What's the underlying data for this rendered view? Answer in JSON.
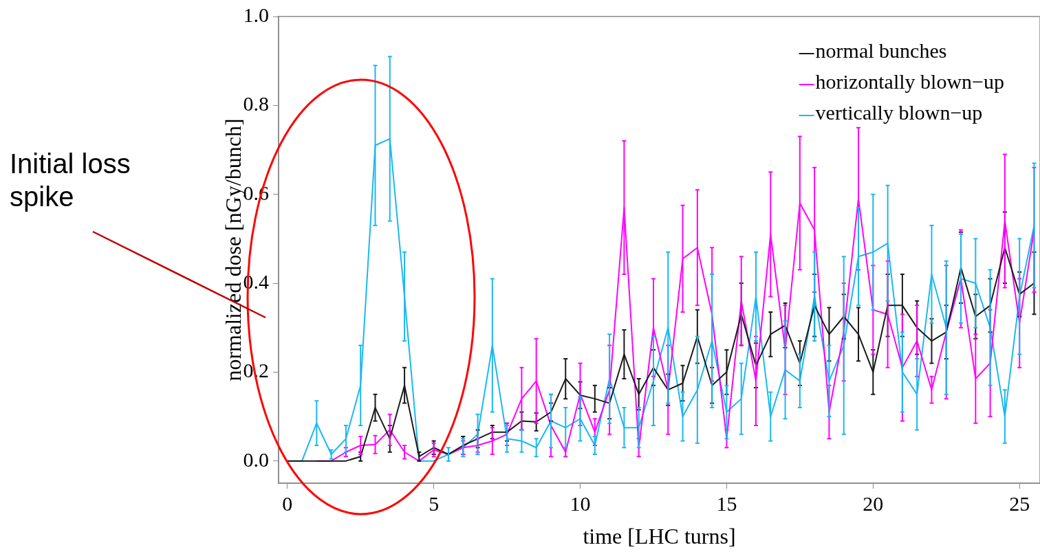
{
  "chart_data": {
    "type": "line",
    "xlabel": "time [LHC turns]",
    "ylabel": "normalized dose [nGy/bunch]",
    "annotations": [
      "Initial loss spike"
    ],
    "x": [
      0,
      0.5,
      1,
      1.5,
      2,
      2.5,
      3,
      3.5,
      4,
      4.5,
      5,
      5.5,
      6,
      6.5,
      7,
      7.5,
      8,
      8.5,
      9,
      9.5,
      10,
      10.5,
      11,
      11.5,
      12,
      12.5,
      13,
      13.5,
      14,
      14.5,
      15,
      15.5,
      16,
      16.5,
      17,
      17.5,
      18,
      18.5,
      19,
      19.5,
      20,
      20.5,
      21,
      21.5,
      22,
      22.5,
      23,
      23.5,
      24,
      24.5,
      25,
      25.5
    ],
    "xlim": [
      -0.3,
      25.7
    ],
    "xticks": [
      0,
      5,
      10,
      15,
      20,
      25
    ],
    "ylim": [
      -0.05,
      1.0
    ],
    "yticks": [
      {
        "value": 0,
        "label": "0.0"
      },
      {
        "value": 0.2,
        "label": "0.2"
      },
      {
        "value": 0.4,
        "label": "0.4"
      },
      {
        "value": 0.6,
        "label": "0.6"
      },
      {
        "value": 0.8,
        "label": "0.8"
      },
      {
        "value": 1.0,
        "label": "1.0"
      }
    ],
    "legend": "top right",
    "series": [
      {
        "name": "normal bunches",
        "color": "#1a1a1a",
        "values": [
          0,
          0,
          0,
          0,
          0,
          0.01,
          0.12,
          0.05,
          0.17,
          0.01,
          0.03,
          0.015,
          0.035,
          0.05,
          0.065,
          0.065,
          0.09,
          0.088,
          0.11,
          0.185,
          0.148,
          0.14,
          0.13,
          0.24,
          0.15,
          0.21,
          0.16,
          0.175,
          0.28,
          0.17,
          0.2,
          0.33,
          0.215,
          0.285,
          0.305,
          0.22,
          0.35,
          0.285,
          0.325,
          0.285,
          0.2,
          0.35,
          0.35,
          0.3,
          0.27,
          0.29,
          0.435,
          0.325,
          0.35,
          0.48,
          0.375,
          0.4
        ],
        "errors": [
          null,
          null,
          null,
          null,
          null,
          0.01,
          0.03,
          0.03,
          0.04,
          0.01,
          0.015,
          null,
          0.02,
          0.02,
          0.015,
          0.02,
          0.02,
          0.02,
          0.02,
          0.045,
          0.03,
          0.03,
          0.035,
          0.055,
          0.035,
          0.04,
          0.035,
          0.04,
          0.06,
          0.04,
          0.05,
          0.07,
          0.05,
          0.05,
          0.05,
          0.05,
          0.07,
          0.06,
          0.05,
          0.06,
          0.05,
          0.07,
          0.07,
          0.06,
          0.05,
          0.06,
          0.08,
          0.05,
          0.06,
          0.08,
          0.05,
          0.07
        ]
      },
      {
        "name": "horizontally blown−up",
        "color": "#ff00ff",
        "values": [
          null,
          null,
          0,
          0,
          0.02,
          0.035,
          0.037,
          0.07,
          0.02,
          0,
          0.025,
          0.015,
          0.03,
          0.035,
          0.045,
          0.06,
          0.14,
          0.18,
          0.08,
          0.02,
          0.15,
          0.065,
          0.16,
          0.57,
          0.03,
          0.3,
          0.16,
          0.455,
          0.48,
          0.33,
          0.05,
          0.36,
          0.18,
          0.51,
          0.25,
          0.58,
          0.52,
          0.11,
          0.29,
          0.59,
          0.34,
          0.33,
          0.21,
          0.27,
          0.16,
          0.29,
          0.41,
          0.185,
          0.22,
          0.54,
          0.31,
          0.52
        ],
        "errors": [
          null,
          null,
          null,
          null,
          0.01,
          0.02,
          0.02,
          0.035,
          0.015,
          null,
          0.015,
          null,
          0.015,
          0.015,
          0.03,
          0.025,
          0.07,
          0.095,
          0.07,
          0.01,
          0.07,
          0.03,
          0.1,
          0.15,
          0.02,
          0.11,
          0.1,
          0.12,
          0.13,
          0.15,
          0.02,
          0.1,
          0.1,
          0.14,
          0.1,
          0.15,
          0.14,
          0.06,
          0.11,
          0.16,
          0.1,
          0.12,
          0.12,
          0.08,
          0.03,
          0.15,
          0.11,
          0.1,
          0.12,
          0.15,
          0.1,
          0.14
        ]
      },
      {
        "name": "vertically blown−up",
        "color": "#1ab8f0",
        "values": [
          0,
          0,
          0.085,
          0.015,
          0.05,
          0.17,
          0.71,
          0.725,
          0.37,
          0,
          0,
          0.015,
          0.03,
          0.06,
          0.26,
          0.05,
          0.045,
          0.03,
          0.09,
          0.075,
          0.095,
          0.035,
          0.185,
          0.075,
          0.075,
          0.18,
          0.3,
          0.1,
          0.16,
          0.27,
          0.11,
          0.14,
          0.37,
          0.1,
          0.205,
          0.18,
          0.37,
          0.18,
          0.26,
          0.46,
          0.47,
          0.49,
          0.2,
          0.15,
          0.42,
          0.3,
          0.41,
          0.4,
          0.3,
          0.1,
          0.37,
          0.53
        ],
        "errors": [
          null,
          null,
          0.05,
          0.01,
          0.03,
          0.09,
          0.18,
          0.185,
          0.1,
          null,
          null,
          0.015,
          0.02,
          0.045,
          0.15,
          0.03,
          0.025,
          0.02,
          0.06,
          0.045,
          0.05,
          0.02,
          0.1,
          0.045,
          0.045,
          0.1,
          0.17,
          0.055,
          0.12,
          0.15,
          0.06,
          0.08,
          0.1,
          0.055,
          0.11,
          0.06,
          0.1,
          0.08,
          0.2,
          0.11,
          0.13,
          0.13,
          0.09,
          0.08,
          0.11,
          0.15,
          0.1,
          0.1,
          0.13,
          0.06,
          0.13,
          0.14
        ]
      }
    ]
  }
}
